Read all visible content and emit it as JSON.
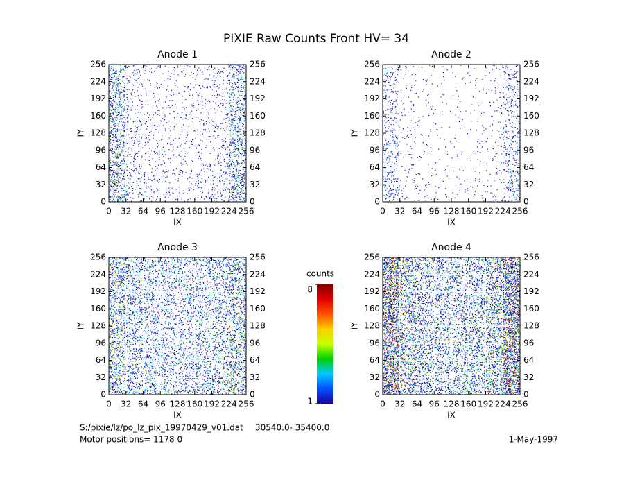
{
  "title": "PIXIE Raw Counts Front HV= 34",
  "chart_data": [
    {
      "type": "heatmap",
      "title": "Anode 1",
      "xlabel": "IX",
      "ylabel": "IY",
      "xlim": [
        0,
        256
      ],
      "ylim": [
        0,
        256
      ],
      "xticks": [
        0,
        32,
        64,
        96,
        128,
        160,
        192,
        224,
        256
      ],
      "yticks": [
        0,
        32,
        64,
        96,
        128,
        160,
        192,
        224,
        256
      ],
      "values": [
        [
          0.6,
          0.2,
          0.12,
          0.1,
          0.1,
          0.12,
          0.2,
          0.6
        ],
        [
          0.7,
          0.2,
          0.12,
          0.1,
          0.1,
          0.12,
          0.2,
          0.6
        ],
        [
          0.7,
          0.22,
          0.14,
          0.12,
          0.12,
          0.14,
          0.22,
          0.7
        ],
        [
          0.7,
          0.22,
          0.15,
          0.12,
          0.12,
          0.15,
          0.22,
          0.7
        ],
        [
          0.7,
          0.22,
          0.15,
          0.12,
          0.12,
          0.15,
          0.22,
          0.7
        ],
        [
          0.75,
          0.22,
          0.15,
          0.12,
          0.12,
          0.15,
          0.22,
          0.75
        ],
        [
          0.8,
          0.25,
          0.18,
          0.15,
          0.15,
          0.18,
          0.25,
          0.8
        ],
        [
          0.8,
          0.25,
          0.2,
          0.15,
          0.15,
          0.2,
          0.25,
          0.8
        ]
      ]
    },
    {
      "type": "heatmap",
      "title": "Anode 2",
      "xlabel": "IX",
      "ylabel": "IY",
      "xlim": [
        0,
        256
      ],
      "ylim": [
        0,
        256
      ],
      "xticks": [
        0,
        32,
        64,
        96,
        128,
        160,
        192,
        224,
        256
      ],
      "yticks": [
        0,
        32,
        64,
        96,
        128,
        160,
        192,
        224,
        256
      ],
      "values": [
        [
          0.3,
          0.08,
          0.05,
          0.04,
          0.04,
          0.05,
          0.08,
          0.3
        ],
        [
          0.3,
          0.08,
          0.05,
          0.04,
          0.04,
          0.05,
          0.08,
          0.3
        ],
        [
          0.3,
          0.08,
          0.05,
          0.04,
          0.04,
          0.05,
          0.08,
          0.3
        ],
        [
          0.3,
          0.08,
          0.05,
          0.04,
          0.04,
          0.05,
          0.08,
          0.3
        ],
        [
          0.35,
          0.08,
          0.05,
          0.04,
          0.04,
          0.05,
          0.08,
          0.35
        ],
        [
          0.35,
          0.08,
          0.05,
          0.04,
          0.04,
          0.05,
          0.08,
          0.35
        ],
        [
          0.35,
          0.1,
          0.06,
          0.05,
          0.05,
          0.06,
          0.1,
          0.35
        ],
        [
          0.4,
          0.1,
          0.08,
          0.06,
          0.06,
          0.08,
          0.1,
          0.4
        ]
      ]
    },
    {
      "type": "heatmap",
      "title": "Anode 3",
      "xlabel": "IX",
      "ylabel": "IY",
      "xlim": [
        0,
        256
      ],
      "ylim": [
        0,
        256
      ],
      "xticks": [
        0,
        32,
        64,
        96,
        128,
        160,
        192,
        224,
        256
      ],
      "yticks": [
        0,
        32,
        64,
        96,
        128,
        160,
        192,
        224,
        256
      ],
      "values": [
        [
          0.8,
          0.6,
          0.55,
          0.5,
          0.5,
          0.55,
          0.6,
          0.8
        ],
        [
          0.8,
          0.6,
          0.5,
          0.5,
          0.5,
          0.5,
          0.6,
          0.8
        ],
        [
          0.8,
          0.6,
          0.5,
          0.45,
          0.45,
          0.5,
          0.6,
          0.8
        ],
        [
          0.8,
          0.6,
          0.5,
          0.45,
          0.45,
          0.5,
          0.6,
          0.8
        ],
        [
          0.8,
          0.6,
          0.5,
          0.45,
          0.45,
          0.5,
          0.6,
          0.8
        ],
        [
          0.8,
          0.6,
          0.5,
          0.45,
          0.45,
          0.5,
          0.6,
          0.8
        ],
        [
          0.85,
          0.6,
          0.55,
          0.5,
          0.5,
          0.55,
          0.6,
          0.85
        ],
        [
          0.9,
          0.65,
          0.55,
          0.5,
          0.5,
          0.55,
          0.65,
          0.9
        ]
      ]
    },
    {
      "type": "heatmap",
      "title": "Anode 4",
      "xlabel": "IX",
      "ylabel": "IY",
      "xlim": [
        0,
        256
      ],
      "ylim": [
        0,
        256
      ],
      "xticks": [
        0,
        32,
        64,
        96,
        128,
        160,
        192,
        224,
        256
      ],
      "yticks": [
        0,
        32,
        64,
        96,
        128,
        160,
        192,
        224,
        256
      ],
      "values": [
        [
          1.6,
          0.9,
          0.7,
          0.6,
          0.6,
          0.7,
          0.9,
          1.6
        ],
        [
          1.6,
          0.9,
          0.7,
          0.6,
          0.6,
          0.7,
          0.9,
          1.6
        ],
        [
          1.6,
          0.9,
          0.7,
          0.6,
          0.6,
          0.7,
          0.9,
          1.6
        ],
        [
          1.6,
          0.9,
          0.7,
          0.6,
          0.6,
          0.7,
          0.9,
          1.6
        ],
        [
          1.6,
          0.9,
          0.7,
          0.6,
          0.6,
          0.7,
          0.9,
          1.6
        ],
        [
          1.6,
          0.9,
          0.7,
          0.6,
          0.6,
          0.7,
          0.9,
          1.6
        ],
        [
          1.6,
          0.9,
          0.7,
          0.6,
          0.6,
          0.7,
          0.9,
          1.6
        ],
        [
          1.7,
          1.0,
          0.75,
          0.65,
          0.65,
          0.75,
          1.0,
          1.7
        ]
      ]
    }
  ],
  "colorbar": {
    "label": "counts",
    "lim": [
      1,
      8
    ],
    "ticks": [
      1,
      8
    ],
    "colormap": [
      "#1a00a0",
      "#0050ff",
      "#00c8ff",
      "#00d000",
      "#c8ff00",
      "#ffd000",
      "#ff5000",
      "#e00000",
      "#800000"
    ]
  },
  "footer": {
    "file": "S:/pixie/lz/po_lz_pix_19970429_v01.dat",
    "range": "30540.0- 35400.0",
    "motor": "Motor positions= 1178 0",
    "date": "1-May-1997"
  }
}
